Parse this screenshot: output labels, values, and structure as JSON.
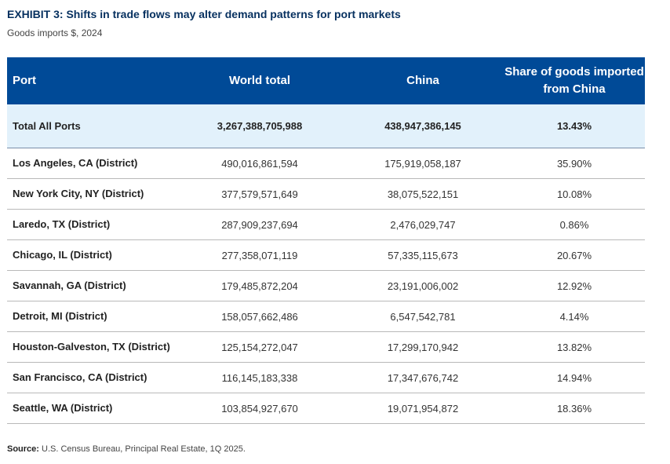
{
  "title": "EXHIBIT 3: Shifts in trade flows may alter demand patterns for port markets",
  "subtitle": "Goods imports $, 2024",
  "table": {
    "headers": [
      "Port",
      "World total",
      "China",
      "Share of goods imported from China"
    ],
    "total": {
      "port": "Total All Ports",
      "world": "3,267,388,705,988",
      "china": "438,947,386,145",
      "share": "13.43%"
    },
    "rows": [
      {
        "port": "Los Angeles, CA (District)",
        "world": "490,016,861,594",
        "china": "175,919,058,187",
        "share": "35.90%"
      },
      {
        "port": "New York City, NY (District)",
        "world": "377,579,571,649",
        "china": "38,075,522,151",
        "share": "10.08%"
      },
      {
        "port": "Laredo, TX (District)",
        "world": "287,909,237,694",
        "china": "2,476,029,747",
        "share": "0.86%"
      },
      {
        "port": "Chicago, IL (District)",
        "world": "277,358,071,119",
        "china": "57,335,115,673",
        "share": "20.67%"
      },
      {
        "port": "Savannah, GA (District)",
        "world": "179,485,872,204",
        "china": "23,191,006,002",
        "share": "12.92%"
      },
      {
        "port": "Detroit, MI (District)",
        "world": "158,057,662,486",
        "china": "6,547,542,781",
        "share": "4.14%"
      },
      {
        "port": "Houston-Galveston, TX (District)",
        "world": "125,154,272,047",
        "china": "17,299,170,942",
        "share": "13.82%"
      },
      {
        "port": "San Francisco, CA (District)",
        "world": "116,145,183,338",
        "china": "17,347,676,742",
        "share": "14.94%"
      },
      {
        "port": "Seattle, WA (District)",
        "world": "103,854,927,670",
        "china": "19,071,954,872",
        "share": "18.36%"
      }
    ]
  },
  "source": {
    "label": "Source:",
    "text": "U.S. Census Bureau, Principal Real Estate, 1Q 2025."
  }
}
